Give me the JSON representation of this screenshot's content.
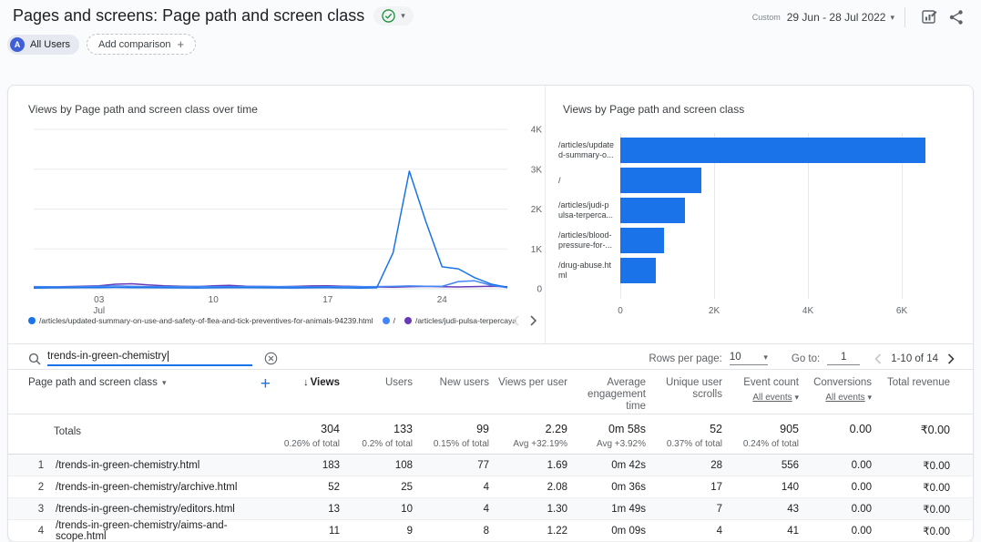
{
  "header": {
    "title": "Pages and screens: Page path and screen class",
    "date_preset": "Custom",
    "date_range": "29 Jun - 28 Jul 2022",
    "all_users_avatar": "A",
    "all_users_chip": "All Users",
    "add_comparison_label": "Add comparison"
  },
  "icons": {
    "caret_down": "▾",
    "plus": "+",
    "sort_down": "↓"
  },
  "chart_data": [
    {
      "type": "line",
      "title": "Views by Page path and screen class over time",
      "n_points": 30,
      "ylim": [
        0,
        4000
      ],
      "y_ticks": [
        "0",
        "1K",
        "2K",
        "3K",
        "4K"
      ],
      "x_ticks": [
        {
          "label": "03",
          "sub": "Jul",
          "index": 4
        },
        {
          "label": "10",
          "index": 11
        },
        {
          "label": "17",
          "index": 18
        },
        {
          "label": "24",
          "index": 25
        }
      ],
      "grid": true,
      "legend_position": "bottom",
      "series": [
        {
          "name": "/articles/updated-summary-on-use-and-safety-of-flea-and-tick-preventives-for-animals-94239.html",
          "color": "#1a73e8",
          "values": [
            18,
            22,
            25,
            28,
            30,
            35,
            30,
            28,
            25,
            22,
            20,
            25,
            30,
            28,
            25,
            22,
            20,
            24,
            28,
            22,
            18,
            25,
            900,
            2950,
            1700,
            550,
            500,
            280,
            120,
            40
          ]
        },
        {
          "name": "/",
          "color": "#4285f4",
          "values": [
            55,
            50,
            45,
            50,
            60,
            70,
            60,
            55,
            50,
            55,
            60,
            55,
            50,
            55,
            60,
            55,
            50,
            45,
            50,
            55,
            50,
            55,
            60,
            70,
            65,
            60,
            180,
            200,
            90,
            30
          ]
        },
        {
          "name": "/articles/judi-pulsa-terpercaya",
          "color": "#673ab7",
          "values": [
            35,
            45,
            55,
            65,
            75,
            115,
            125,
            95,
            75,
            65,
            55,
            75,
            85,
            65,
            55,
            50,
            60,
            70,
            75,
            65,
            55,
            45,
            40,
            50,
            60,
            50,
            45,
            55,
            65,
            50
          ]
        }
      ]
    },
    {
      "type": "bar",
      "title": "Views by Page path and screen class",
      "orientation": "horizontal",
      "categories": [
        "/articles/updated-summary-o...",
        "/",
        "/articles/judi-pulsa-terperca...",
        "/articles/blood-pressure-for-...",
        "/drug-abuse.html"
      ],
      "category_labels": [
        {
          "l1": "/articles/update",
          "l2": "d-summary-o..."
        },
        {
          "l1": "/",
          "l2": ""
        },
        {
          "l1": "/articles/judi-p",
          "l2": "ulsa-terperca..."
        },
        {
          "l1": "/articles/blood-",
          "l2": "pressure-for-..."
        },
        {
          "l1": "/drug-abuse.ht",
          "l2": "ml"
        }
      ],
      "values": [
        6500,
        1730,
        1380,
        940,
        750
      ],
      "x_ticks": [
        "0",
        "2K",
        "4K",
        "6K"
      ],
      "xlim": [
        0,
        7300
      ],
      "bar_color": "#1a73e8"
    }
  ],
  "table": {
    "search_value": "trends-in-green-chemistry",
    "rows_per_page_label": "Rows per page:",
    "rows_per_page_value": "10",
    "goto_label": "Go to:",
    "goto_value": "1",
    "pagination_label": "1-10 of 14",
    "totals_label": "Totals",
    "columns": [
      {
        "label": "Page path and screen class"
      },
      {
        "label": "Views",
        "sorted": true
      },
      {
        "label": "Users"
      },
      {
        "label": "New users"
      },
      {
        "label": "Views per user"
      },
      {
        "label": "Average engagement time"
      },
      {
        "label": "Unique user scrolls"
      },
      {
        "label": "Event count",
        "filter": "All events"
      },
      {
        "label": "Conversions",
        "filter": "All events"
      },
      {
        "label": "Total revenue"
      }
    ],
    "totals_values": [
      {
        "v": "304",
        "s": "0.26% of total"
      },
      {
        "v": "133",
        "s": "0.2% of total"
      },
      {
        "v": "99",
        "s": "0.15% of total"
      },
      {
        "v": "2.29",
        "s": "Avg +32.19%"
      },
      {
        "v": "0m 58s",
        "s": "Avg +3.92%"
      },
      {
        "v": "52",
        "s": "0.37% of total"
      },
      {
        "v": "905",
        "s": "0.24% of total"
      },
      {
        "v": "0.00",
        "s": ""
      },
      {
        "v": "₹0.00",
        "s": ""
      }
    ],
    "rows": [
      {
        "num": "1",
        "path": "/trends-in-green-chemistry.html",
        "values": [
          "183",
          "108",
          "77",
          "1.69",
          "0m 42s",
          "28",
          "556",
          "0.00",
          "₹0.00"
        ]
      },
      {
        "num": "2",
        "path": "/trends-in-green-chemistry/archive.html",
        "values": [
          "52",
          "25",
          "4",
          "2.08",
          "0m 36s",
          "17",
          "140",
          "0.00",
          "₹0.00"
        ]
      },
      {
        "num": "3",
        "path": "/trends-in-green-chemistry/editors.html",
        "values": [
          "13",
          "10",
          "4",
          "1.30",
          "1m 49s",
          "7",
          "43",
          "0.00",
          "₹0.00"
        ]
      },
      {
        "num": "4",
        "path": "/trends-in-green-chemistry/aims-and-scope.html",
        "values": [
          "11",
          "9",
          "8",
          "1.22",
          "0m 09s",
          "4",
          "41",
          "0.00",
          "₹0.00"
        ]
      }
    ]
  }
}
